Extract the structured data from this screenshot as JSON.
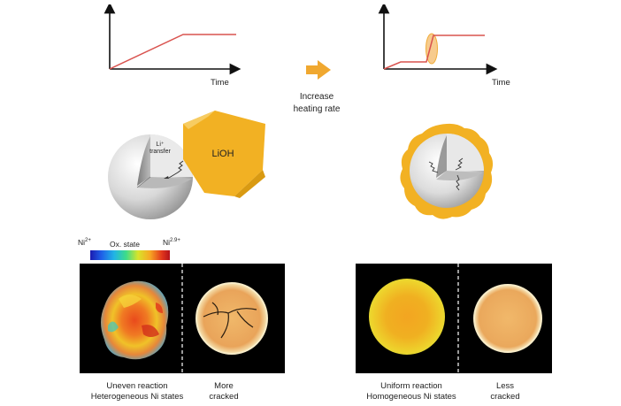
{
  "graphs": {
    "left": {
      "xlabel": "Time"
    },
    "right": {
      "xlabel": "Time"
    }
  },
  "transition": {
    "line1": "Increase",
    "line2": "heating rate"
  },
  "particle_left": {
    "transfer_line1": "Li⁺",
    "transfer_line2": "transfer",
    "lioh_label": "LiOH"
  },
  "colorbar": {
    "low": "Ni",
    "low_sup": "2+",
    "title": "Ox. state",
    "high": "Ni",
    "high_sup": "2.9+"
  },
  "captions": {
    "left_ox": {
      "line1": "Uneven reaction",
      "line2": "Heterogeneous Ni states"
    },
    "left_cr": {
      "line1": "More",
      "line2": "cracked"
    },
    "right_ox": {
      "line1": "Uniform reaction",
      "line2": "Homogeneous Ni states"
    },
    "right_cr": {
      "line1": "Less",
      "line2": "cracked"
    }
  },
  "colors": {
    "ramp_line": "#d9534f",
    "lioh": "#f2b123",
    "arrow": "#f0a830",
    "panel_bg": "#000000"
  }
}
